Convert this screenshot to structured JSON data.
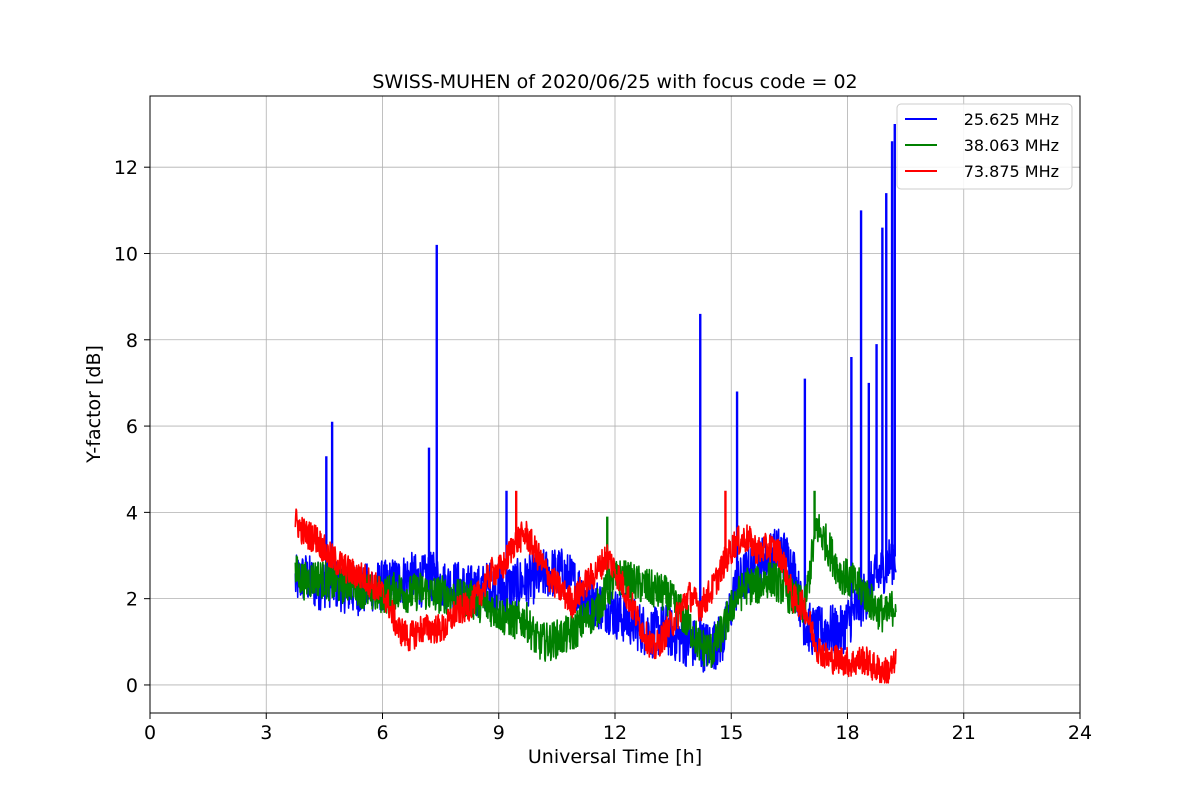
{
  "chart_data": {
    "type": "line",
    "title": "SWISS-MUHEN of 2020/06/25 with focus code = 02",
    "xlabel": "Universal Time [h]",
    "ylabel": "Y-factor [dB]",
    "xlim": [
      0,
      24
    ],
    "ylim": [
      -0.65,
      13.65
    ],
    "xticks": [
      0,
      3,
      6,
      9,
      12,
      15,
      18,
      21,
      24
    ],
    "yticks": [
      0,
      2,
      4,
      6,
      8,
      10,
      12
    ],
    "grid": true,
    "legend_position": "top-right",
    "series": [
      {
        "name": "25.625 MHz",
        "color": "#0000ff",
        "points": [
          [
            3.75,
            2.4
          ],
          [
            4.0,
            2.5
          ],
          [
            4.3,
            2.3
          ],
          [
            4.6,
            2.4
          ],
          [
            4.9,
            2.3
          ],
          [
            5.2,
            2.2
          ],
          [
            5.5,
            2.2
          ],
          [
            5.8,
            2.3
          ],
          [
            6.1,
            2.3
          ],
          [
            6.4,
            2.4
          ],
          [
            6.7,
            2.5
          ],
          [
            7.0,
            2.4
          ],
          [
            7.3,
            2.5
          ],
          [
            7.6,
            2.3
          ],
          [
            7.9,
            2.3
          ],
          [
            8.2,
            2.2
          ],
          [
            8.5,
            2.2
          ],
          [
            8.8,
            2.3
          ],
          [
            9.1,
            2.2
          ],
          [
            9.4,
            2.3
          ],
          [
            9.7,
            2.4
          ],
          [
            10.0,
            2.5
          ],
          [
            10.3,
            2.6
          ],
          [
            10.6,
            2.6
          ],
          [
            10.9,
            2.4
          ],
          [
            11.2,
            2.1
          ],
          [
            11.5,
            1.9
          ],
          [
            11.8,
            1.8
          ],
          [
            12.1,
            1.6
          ],
          [
            12.4,
            1.5
          ],
          [
            12.7,
            1.3
          ],
          [
            13.0,
            1.2
          ],
          [
            13.3,
            1.3
          ],
          [
            13.6,
            1.1
          ],
          [
            13.9,
            1.0
          ],
          [
            14.2,
            0.9
          ],
          [
            14.5,
            0.9
          ],
          [
            14.8,
            1.1
          ],
          [
            15.1,
            2.2
          ],
          [
            15.4,
            2.6
          ],
          [
            15.7,
            2.8
          ],
          [
            16.0,
            3.0
          ],
          [
            16.3,
            3.1
          ],
          [
            16.6,
            2.7
          ],
          [
            16.9,
            1.4
          ],
          [
            17.2,
            1.2
          ],
          [
            17.5,
            1.3
          ],
          [
            17.8,
            1.2
          ],
          [
            18.1,
            1.6
          ],
          [
            18.4,
            2.0
          ],
          [
            18.7,
            2.4
          ],
          [
            19.0,
            2.8
          ],
          [
            19.25,
            3.0
          ]
        ],
        "noise": 0.6,
        "spikes": [
          [
            4.7,
            6.1
          ],
          [
            4.55,
            5.3
          ],
          [
            7.2,
            5.5
          ],
          [
            7.4,
            10.2
          ],
          [
            9.2,
            4.5
          ],
          [
            14.2,
            8.6
          ],
          [
            15.15,
            6.8
          ],
          [
            16.9,
            7.1
          ],
          [
            18.1,
            7.6
          ],
          [
            18.35,
            11.0
          ],
          [
            18.55,
            7.0
          ],
          [
            18.75,
            7.9
          ],
          [
            18.9,
            10.6
          ],
          [
            19.0,
            11.4
          ],
          [
            19.15,
            12.6
          ],
          [
            19.22,
            13.0
          ]
        ]
      },
      {
        "name": "38.063 MHz",
        "color": "#008000",
        "points": [
          [
            3.75,
            2.6
          ],
          [
            4.0,
            2.4
          ],
          [
            4.3,
            2.5
          ],
          [
            4.6,
            2.4
          ],
          [
            4.9,
            2.3
          ],
          [
            5.2,
            2.4
          ],
          [
            5.5,
            2.2
          ],
          [
            5.8,
            2.1
          ],
          [
            6.1,
            2.1
          ],
          [
            6.4,
            2.2
          ],
          [
            6.7,
            2.1
          ],
          [
            7.0,
            2.2
          ],
          [
            7.3,
            2.1
          ],
          [
            7.6,
            2.1
          ],
          [
            7.9,
            2.0
          ],
          [
            8.2,
            2.0
          ],
          [
            8.5,
            1.9
          ],
          [
            8.8,
            1.8
          ],
          [
            9.1,
            1.6
          ],
          [
            9.4,
            1.5
          ],
          [
            9.7,
            1.5
          ],
          [
            10.0,
            1.0
          ],
          [
            10.3,
            1.0
          ],
          [
            10.6,
            1.1
          ],
          [
            10.9,
            1.2
          ],
          [
            11.2,
            1.5
          ],
          [
            11.5,
            1.7
          ],
          [
            11.8,
            2.2
          ],
          [
            12.1,
            2.5
          ],
          [
            12.4,
            2.4
          ],
          [
            12.7,
            2.3
          ],
          [
            13.0,
            2.2
          ],
          [
            13.3,
            2.1
          ],
          [
            13.6,
            1.8
          ],
          [
            13.9,
            1.4
          ],
          [
            14.2,
            0.9
          ],
          [
            14.5,
            0.8
          ],
          [
            14.8,
            1.3
          ],
          [
            15.1,
            2.0
          ],
          [
            15.4,
            2.3
          ],
          [
            15.7,
            2.3
          ],
          [
            16.0,
            2.5
          ],
          [
            16.3,
            2.3
          ],
          [
            16.6,
            2.0
          ],
          [
            16.9,
            1.8
          ],
          [
            17.2,
            3.7
          ],
          [
            17.5,
            3.2
          ],
          [
            17.8,
            2.6
          ],
          [
            18.1,
            2.4
          ],
          [
            18.4,
            2.2
          ],
          [
            18.7,
            1.8
          ],
          [
            19.0,
            1.6
          ],
          [
            19.25,
            1.9
          ]
        ],
        "noise": 0.45,
        "spikes": [
          [
            11.8,
            3.9
          ],
          [
            17.15,
            4.5
          ]
        ]
      },
      {
        "name": "73.875 MHz",
        "color": "#ff0000",
        "points": [
          [
            3.75,
            3.8
          ],
          [
            4.0,
            3.5
          ],
          [
            4.3,
            3.4
          ],
          [
            4.6,
            3.0
          ],
          [
            4.9,
            2.8
          ],
          [
            5.2,
            2.6
          ],
          [
            5.5,
            2.5
          ],
          [
            5.8,
            2.3
          ],
          [
            6.1,
            2.0
          ],
          [
            6.4,
            1.3
          ],
          [
            6.7,
            1.1
          ],
          [
            7.0,
            1.3
          ],
          [
            7.3,
            1.3
          ],
          [
            7.6,
            1.3
          ],
          [
            7.9,
            1.7
          ],
          [
            8.2,
            1.8
          ],
          [
            8.5,
            2.1
          ],
          [
            8.8,
            2.6
          ],
          [
            9.1,
            2.7
          ],
          [
            9.4,
            3.3
          ],
          [
            9.7,
            3.5
          ],
          [
            10.0,
            3.0
          ],
          [
            10.3,
            2.5
          ],
          [
            10.6,
            2.2
          ],
          [
            10.9,
            1.9
          ],
          [
            11.2,
            2.3
          ],
          [
            11.5,
            2.6
          ],
          [
            11.8,
            3.0
          ],
          [
            12.1,
            2.5
          ],
          [
            12.4,
            1.9
          ],
          [
            12.7,
            1.3
          ],
          [
            13.0,
            0.8
          ],
          [
            13.3,
            1.2
          ],
          [
            13.6,
            1.6
          ],
          [
            13.9,
            2.1
          ],
          [
            14.2,
            1.8
          ],
          [
            14.5,
            2.2
          ],
          [
            14.8,
            2.8
          ],
          [
            15.1,
            3.3
          ],
          [
            15.4,
            3.4
          ],
          [
            15.7,
            3.1
          ],
          [
            16.0,
            3.2
          ],
          [
            16.3,
            3.0
          ],
          [
            16.6,
            2.0
          ],
          [
            16.9,
            1.8
          ],
          [
            17.2,
            0.9
          ],
          [
            17.5,
            0.6
          ],
          [
            17.8,
            0.6
          ],
          [
            18.1,
            0.5
          ],
          [
            18.4,
            0.6
          ],
          [
            18.7,
            0.4
          ],
          [
            19.0,
            0.3
          ],
          [
            19.25,
            0.5
          ]
        ],
        "noise": 0.35,
        "spikes": [
          [
            9.45,
            4.5
          ],
          [
            14.85,
            4.5
          ]
        ]
      }
    ]
  }
}
